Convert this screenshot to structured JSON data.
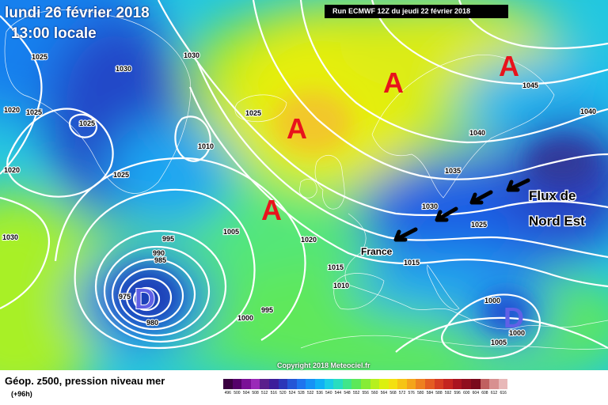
{
  "header": {
    "date_line": "lundi 26 février 2018",
    "time_line": "13:00 locale",
    "run_info": "Run ECMWF 12Z du jeudi 22 février 2018"
  },
  "map": {
    "annotation_text": [
      "Flux de",
      "Nord Est"
    ],
    "country_label": "France",
    "high_marker": "A",
    "low_marker": "D",
    "isobar_labels": [
      "1025",
      "1030",
      "1030",
      "1020",
      "1025",
      "1025",
      "1020",
      "1025",
      "1030",
      "1010",
      "1005",
      "995",
      "990",
      "985",
      "975",
      "980",
      "1000",
      "995",
      "1025",
      "1020",
      "1015",
      "1010",
      "1045",
      "1040",
      "1040",
      "1035",
      "1030",
      "1025",
      "1015",
      "1000",
      "1000",
      "1005"
    ],
    "copyright": "Copyright 2018 Meteociel.fr",
    "colors": {
      "high_marker": "#e8131c",
      "low_marker": "#6060e6",
      "isobar": "#ffffff",
      "arrow": "#000000"
    }
  },
  "footer": {
    "title": "Géop. z500, pression niveau mer",
    "subtitle": "(+96h)"
  },
  "legend": {
    "labels": [
      "496",
      "500",
      "504",
      "508",
      "512",
      "516",
      "520",
      "524",
      "528",
      "532",
      "536",
      "540",
      "544",
      "548",
      "552",
      "556",
      "560",
      "564",
      "568",
      "572",
      "576",
      "580",
      "584",
      "588",
      "592",
      "596",
      "600",
      "604",
      "608",
      "612",
      "616"
    ],
    "colors": [
      "#3a0040",
      "#55006a",
      "#7a1096",
      "#9a2ab8",
      "#5a1f8c",
      "#3c1d9a",
      "#2b36b8",
      "#2456d6",
      "#1e74ee",
      "#1592f5",
      "#10b0f5",
      "#1bcde6",
      "#29ddc0",
      "#40e68a",
      "#5ce85a",
      "#86ec36",
      "#b6f01e",
      "#dcf00e",
      "#f4e010",
      "#f6c414",
      "#f4a41a",
      "#ee8020",
      "#e45c22",
      "#d63c22",
      "#c42420",
      "#aa1420",
      "#900e1e",
      "#7a0a1c",
      "#c06060",
      "#d89090",
      "#e8b8b8"
    ]
  }
}
